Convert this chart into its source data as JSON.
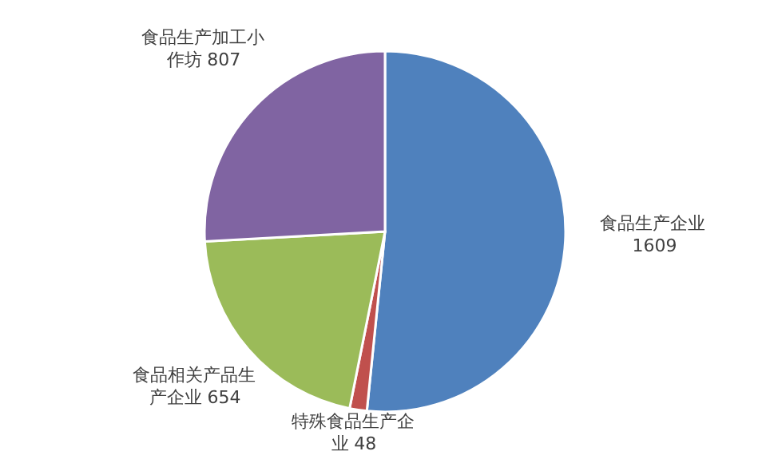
{
  "chart_data": {
    "type": "pie",
    "categories": [
      "食品生产企业",
      "特殊食品生产企业",
      "食品相关产品生产企业",
      "食品生产加工小作坊"
    ],
    "values": [
      1609,
      48,
      654,
      807
    ],
    "colors": [
      "#4f81bd",
      "#c0504d",
      "#9bbb59",
      "#8064a2"
    ],
    "data_labels": true
  }
}
